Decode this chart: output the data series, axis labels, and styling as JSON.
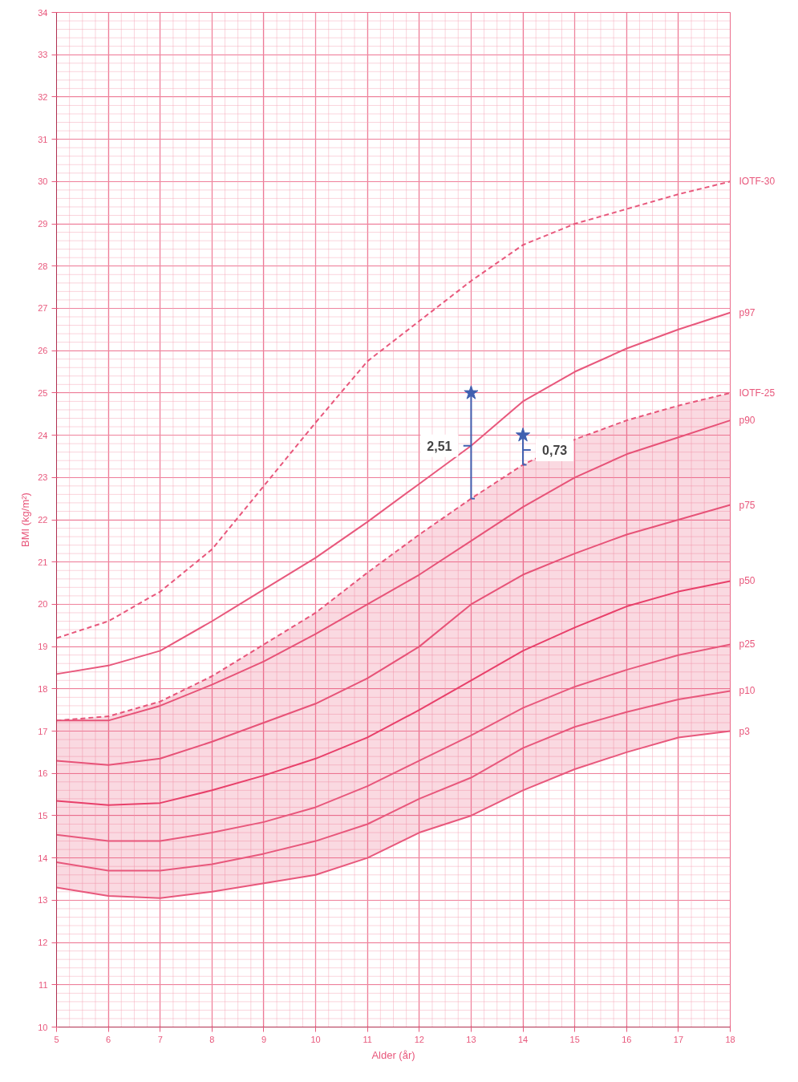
{
  "chart_data": {
    "type": "line",
    "xlabel": "Alder (år)",
    "ylabel": "BMI (kg/m²)",
    "xlim": [
      5,
      18
    ],
    "ylim": [
      10,
      34
    ],
    "xticks": [
      5,
      6,
      7,
      8,
      9,
      10,
      11,
      12,
      13,
      14,
      15,
      16,
      17,
      18
    ],
    "yticks": [
      10,
      11,
      12,
      13,
      14,
      15,
      16,
      17,
      18,
      19,
      20,
      21,
      22,
      23,
      24,
      25,
      26,
      27,
      28,
      29,
      30,
      31,
      32,
      33,
      34
    ],
    "grid": true,
    "marker": "none",
    "x": [
      5,
      6,
      7,
      8,
      9,
      10,
      11,
      12,
      13,
      14,
      15,
      16,
      17,
      18
    ],
    "series": [
      {
        "name": "IOTF-30",
        "color": "#e8587c",
        "line_style": "dashed",
        "values": [
          19.2,
          19.6,
          20.3,
          21.3,
          22.8,
          24.3,
          25.75,
          26.7,
          27.65,
          28.5,
          29.0,
          29.35,
          29.7,
          30.0
        ]
      },
      {
        "name": "p97",
        "color": "#e8587c",
        "values": [
          18.35,
          18.55,
          18.9,
          19.6,
          20.35,
          21.1,
          21.95,
          22.85,
          23.75,
          24.8,
          25.5,
          26.05,
          26.5,
          26.9
        ]
      },
      {
        "name": "IOTF-25",
        "color": "#e8587c",
        "line_style": "dashed",
        "values": [
          17.25,
          17.35,
          17.7,
          18.3,
          19.05,
          19.8,
          20.75,
          21.65,
          22.5,
          23.3,
          23.9,
          24.35,
          24.7,
          25.0
        ]
      },
      {
        "name": "p90",
        "color": "#e8587c",
        "values": [
          17.25,
          17.25,
          17.6,
          18.1,
          18.65,
          19.3,
          20.0,
          20.7,
          21.5,
          22.3,
          23.0,
          23.55,
          23.95,
          24.35
        ]
      },
      {
        "name": "p75",
        "color": "#e8587c",
        "values": [
          16.3,
          16.2,
          16.35,
          16.75,
          17.2,
          17.65,
          18.25,
          19.0,
          20.0,
          20.7,
          21.2,
          21.65,
          22.0,
          22.35
        ]
      },
      {
        "name": "p50",
        "color": "#e8406a",
        "values": [
          15.35,
          15.25,
          15.3,
          15.6,
          15.95,
          16.35,
          16.85,
          17.5,
          18.2,
          18.9,
          19.45,
          19.95,
          20.3,
          20.55
        ],
        "lower": [
          13.3,
          13.1,
          13.05,
          13.2,
          13.4,
          13.6,
          14.0,
          14.6,
          15.0,
          15.6,
          16.1,
          16.5,
          16.85,
          17.0
        ],
        "upper": [
          17.25,
          17.35,
          17.7,
          18.3,
          19.05,
          19.8,
          20.75,
          21.65,
          22.5,
          23.3,
          23.9,
          24.35,
          24.7,
          25.0
        ]
      },
      {
        "name": "p25",
        "color": "#e8587c",
        "values": [
          14.55,
          14.4,
          14.4,
          14.6,
          14.85,
          15.2,
          15.7,
          16.3,
          16.9,
          17.55,
          18.05,
          18.45,
          18.8,
          19.05
        ]
      },
      {
        "name": "p10",
        "color": "#e8587c",
        "values": [
          13.9,
          13.7,
          13.7,
          13.85,
          14.1,
          14.4,
          14.8,
          15.4,
          15.9,
          16.6,
          17.1,
          17.45,
          17.75,
          17.95
        ]
      },
      {
        "name": "p3",
        "color": "#e8587c",
        "values": [
          13.3,
          13.1,
          13.05,
          13.2,
          13.4,
          13.6,
          14.0,
          14.6,
          15.0,
          15.6,
          16.1,
          16.5,
          16.85,
          17.0
        ]
      },
      {
        "type": "scatter",
        "marker": "star",
        "color": "#4060b0",
        "x": [
          13,
          14
        ],
        "values": [
          25,
          24
        ],
        "errors": [
          [
            22.5,
            25
          ],
          [
            23.3,
            24
          ]
        ]
      }
    ],
    "annotations": [
      {
        "text": "2,51",
        "x": 13,
        "y": 23.75
      },
      {
        "text": "0,73",
        "x": 14,
        "y": 23.65
      }
    ]
  }
}
